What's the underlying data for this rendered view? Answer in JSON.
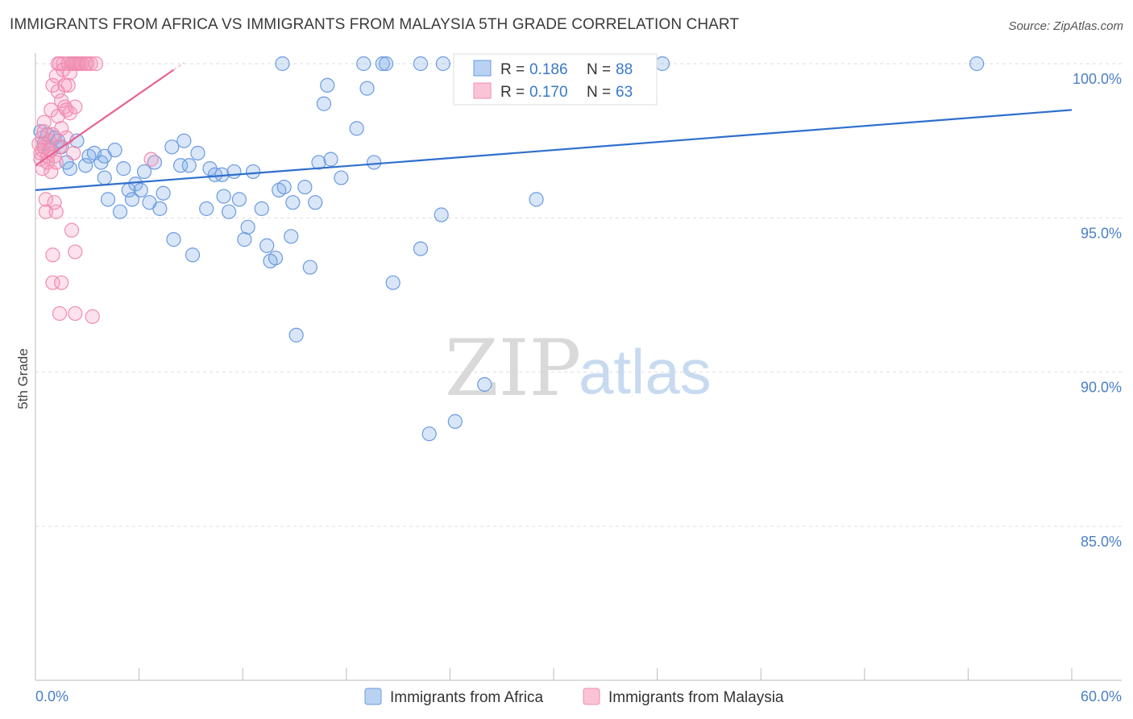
{
  "title": "IMMIGRANTS FROM AFRICA VS IMMIGRANTS FROM MALAYSIA 5TH GRADE CORRELATION CHART",
  "source": "Source: ZipAtlas.com",
  "watermark": {
    "zip": "ZIP",
    "atlas": "atlas"
  },
  "colors": {
    "africa": "#6a9be0",
    "africa_line": "#2f6fcc",
    "malaysia": "#f08cb0",
    "malaysia_line": "#e8608f",
    "grid": "#dddddd"
  },
  "chart_data": {
    "type": "scatter",
    "ylabel": "5th Grade",
    "xlim": [
      0,
      60
    ],
    "ylim": [
      80.5,
      101
    ],
    "x_tick_labels": [
      {
        "value": 0,
        "label": "0.0%"
      },
      {
        "value": 60,
        "label": "60.0%"
      }
    ],
    "y_tick_labels": [
      {
        "value": 100,
        "label": "100.0%"
      },
      {
        "value": 95,
        "label": "95.0%"
      },
      {
        "value": 90,
        "label": "90.0%"
      },
      {
        "value": 85,
        "label": "85.0%"
      }
    ],
    "legend": {
      "r_label": "R =",
      "n_label": "N =",
      "entries": [
        {
          "series": "africa",
          "r": "0.186",
          "n": "88"
        },
        {
          "series": "malaysia",
          "r": "0.170",
          "n": "63"
        }
      ]
    },
    "series": [
      {
        "name": "Immigrants from Africa",
        "key": "africa",
        "trend": {
          "x0": 0,
          "y0": 95.9,
          "x1": 60,
          "y1": 98.5
        },
        "points": [
          [
            0.3,
            97.8
          ],
          [
            0.5,
            97.4
          ],
          [
            0.7,
            97.7
          ],
          [
            0.9,
            97.2
          ],
          [
            1.1,
            97.6
          ],
          [
            1.3,
            97.5
          ],
          [
            1.5,
            97.3
          ],
          [
            1.8,
            96.8
          ],
          [
            2.0,
            96.6
          ],
          [
            2.4,
            97.5
          ],
          [
            2.9,
            96.7
          ],
          [
            3.1,
            97.0
          ],
          [
            3.4,
            97.1
          ],
          [
            3.8,
            96.8
          ],
          [
            4.0,
            97.0
          ],
          [
            4.0,
            96.3
          ],
          [
            4.2,
            95.6
          ],
          [
            4.6,
            97.2
          ],
          [
            4.9,
            95.2
          ],
          [
            5.1,
            96.6
          ],
          [
            5.4,
            95.9
          ],
          [
            5.6,
            95.6
          ],
          [
            5.8,
            96.1
          ],
          [
            6.1,
            95.9
          ],
          [
            6.3,
            96.5
          ],
          [
            6.6,
            95.5
          ],
          [
            6.9,
            96.8
          ],
          [
            7.2,
            95.3
          ],
          [
            7.4,
            95.8
          ],
          [
            7.9,
            97.3
          ],
          [
            8.0,
            94.3
          ],
          [
            8.4,
            96.7
          ],
          [
            8.6,
            97.5
          ],
          [
            8.9,
            96.7
          ],
          [
            9.1,
            93.8
          ],
          [
            9.4,
            97.1
          ],
          [
            9.9,
            95.3
          ],
          [
            10.1,
            96.6
          ],
          [
            10.4,
            96.4
          ],
          [
            10.8,
            96.4
          ],
          [
            10.9,
            95.7
          ],
          [
            11.2,
            95.2
          ],
          [
            11.5,
            96.5
          ],
          [
            11.8,
            95.6
          ],
          [
            12.1,
            94.3
          ],
          [
            12.3,
            94.7
          ],
          [
            12.6,
            96.5
          ],
          [
            13.1,
            95.3
          ],
          [
            13.4,
            94.1
          ],
          [
            13.6,
            93.6
          ],
          [
            13.9,
            93.7
          ],
          [
            14.1,
            95.9
          ],
          [
            14.4,
            96.0
          ],
          [
            14.8,
            94.4
          ],
          [
            14.9,
            95.5
          ],
          [
            15.1,
            91.2
          ],
          [
            15.6,
            96.0
          ],
          [
            15.9,
            93.4
          ],
          [
            16.2,
            95.5
          ],
          [
            16.4,
            96.8
          ],
          [
            16.7,
            98.7
          ],
          [
            16.9,
            99.3
          ],
          [
            17.1,
            96.9
          ],
          [
            17.7,
            96.3
          ],
          [
            18.6,
            97.9
          ],
          [
            19.2,
            99.2
          ],
          [
            19.6,
            96.8
          ],
          [
            20.7,
            92.9
          ],
          [
            22.3,
            94.0
          ],
          [
            22.8,
            88.0
          ],
          [
            23.5,
            95.1
          ],
          [
            24.3,
            88.4
          ],
          [
            26.0,
            89.6
          ],
          [
            29.0,
            95.6
          ],
          [
            14.3,
            100
          ],
          [
            19.0,
            100
          ],
          [
            20.1,
            100
          ],
          [
            20.3,
            100
          ],
          [
            22.3,
            100
          ],
          [
            23.6,
            100
          ],
          [
            24.9,
            100
          ],
          [
            30.1,
            100
          ],
          [
            31.5,
            100
          ],
          [
            32.3,
            100
          ],
          [
            32.7,
            100
          ],
          [
            33.4,
            100
          ],
          [
            36.3,
            100
          ],
          [
            54.5,
            100
          ]
        ]
      },
      {
        "name": "Immigrants from Malaysia",
        "key": "malaysia",
        "trend": {
          "x0": 0,
          "y0": 96.7,
          "x1": 8.0,
          "y1": 99.8
        },
        "points": [
          [
            0.2,
            97.4
          ],
          [
            0.3,
            97.1
          ],
          [
            0.3,
            96.9
          ],
          [
            0.4,
            97.6
          ],
          [
            0.4,
            97.2
          ],
          [
            0.4,
            96.6
          ],
          [
            0.5,
            97.8
          ],
          [
            0.5,
            97.3
          ],
          [
            0.5,
            98.1
          ],
          [
            0.6,
            95.6
          ],
          [
            0.6,
            95.2
          ],
          [
            0.7,
            97.0
          ],
          [
            0.7,
            96.8
          ],
          [
            0.8,
            97.5
          ],
          [
            0.8,
            97.2
          ],
          [
            0.9,
            98.5
          ],
          [
            0.9,
            96.5
          ],
          [
            1.0,
            99.3
          ],
          [
            1.0,
            97.7
          ],
          [
            1.0,
            93.8
          ],
          [
            1.0,
            92.9
          ],
          [
            1.1,
            95.5
          ],
          [
            1.1,
            97.0
          ],
          [
            1.2,
            99.6
          ],
          [
            1.2,
            95.2
          ],
          [
            1.2,
            96.8
          ],
          [
            1.3,
            99.1
          ],
          [
            1.3,
            98.3
          ],
          [
            1.3,
            100
          ],
          [
            1.4,
            97.3
          ],
          [
            1.4,
            100
          ],
          [
            1.4,
            91.9
          ],
          [
            1.5,
            98.8
          ],
          [
            1.5,
            92.9
          ],
          [
            1.5,
            97.9
          ],
          [
            1.6,
            100
          ],
          [
            1.6,
            99.8
          ],
          [
            1.7,
            98.6
          ],
          [
            1.7,
            99.3
          ],
          [
            1.8,
            98.5
          ],
          [
            1.8,
            97.6
          ],
          [
            1.9,
            100
          ],
          [
            1.9,
            99.3
          ],
          [
            2.0,
            99.7
          ],
          [
            2.0,
            98.4
          ],
          [
            2.1,
            100
          ],
          [
            2.1,
            94.6
          ],
          [
            2.2,
            100
          ],
          [
            2.2,
            97.1
          ],
          [
            2.3,
            100
          ],
          [
            2.3,
            98.6
          ],
          [
            2.3,
            93.9
          ],
          [
            2.3,
            91.9
          ],
          [
            2.4,
            100
          ],
          [
            2.5,
            100
          ],
          [
            2.6,
            100
          ],
          [
            2.7,
            100
          ],
          [
            2.9,
            100
          ],
          [
            3.0,
            100
          ],
          [
            3.2,
            100
          ],
          [
            3.3,
            91.8
          ],
          [
            3.5,
            100
          ],
          [
            6.7,
            96.9
          ]
        ]
      }
    ]
  },
  "bottom_legend": [
    {
      "key": "africa",
      "label": "Immigrants from Africa"
    },
    {
      "key": "malaysia",
      "label": "Immigrants from Malaysia"
    }
  ]
}
